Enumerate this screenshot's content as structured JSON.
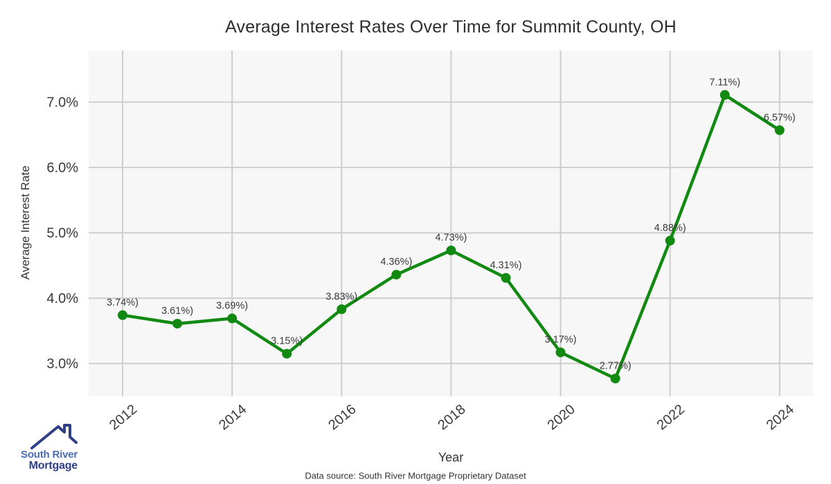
{
  "chart_data": {
    "type": "line",
    "title": "Average Interest Rates Over Time for Summit County, OH",
    "xlabel": "Year",
    "ylabel": "Average Interest Rate",
    "x": [
      2012,
      2013,
      2014,
      2015,
      2016,
      2017,
      2018,
      2019,
      2020,
      2021,
      2022,
      2023,
      2024
    ],
    "values": [
      3.74,
      3.61,
      3.69,
      3.15,
      3.83,
      4.36,
      4.73,
      4.31,
      3.17,
      2.77,
      4.88,
      7.11,
      6.57
    ],
    "point_labels": [
      "3.74%)",
      "3.61%)",
      "3.69%)",
      "3.15%)",
      "3.83%)",
      "4.36%)",
      "4.73%)",
      "4.31%)",
      "3.17%)",
      "2.77%)",
      "4.88%)",
      "7.11%)",
      "6.57%)"
    ],
    "x_ticks": [
      2012,
      2014,
      2016,
      2018,
      2020,
      2022,
      2024
    ],
    "x_tick_labels": [
      "2012",
      "2014",
      "2016",
      "2018",
      "2020",
      "2022",
      "2024"
    ],
    "y_ticks": [
      3,
      4,
      5,
      6,
      7
    ],
    "y_tick_labels": [
      "3.0%",
      "4.0%",
      "5.0%",
      "6.0%",
      "7.0%"
    ],
    "xlim": [
      2011.38,
      2024.61
    ],
    "ylim": [
      2.5,
      7.79
    ],
    "grid": true,
    "legend": false,
    "line_color": "#128a12",
    "marker_color": "#128a12",
    "plot_bg": "#f7f7f7",
    "grid_color": "#cdcdcd",
    "label_color": "#3a3a3a",
    "tick_color": "#3a3a3a"
  },
  "branding": {
    "icon": "house-roof-icon",
    "line1": "South River",
    "line2": "Mortgage",
    "line1_color": "#4a6cb3",
    "line2_color": "#2e3f87"
  },
  "footer": {
    "text": "Data source: South River Mortgage Proprietary Dataset"
  }
}
